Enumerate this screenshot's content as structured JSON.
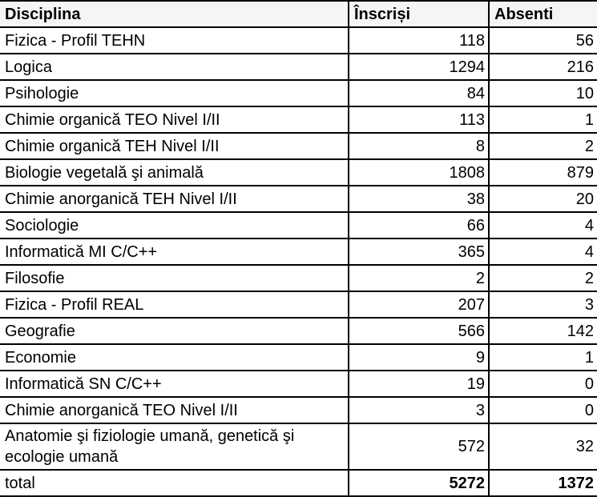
{
  "table": {
    "headers": {
      "disciplina": "Disciplina",
      "inscrisi": "Înscriși",
      "absenti": "Absenti"
    },
    "rows": [
      {
        "disciplina": "Fizica - Profil TEHN",
        "inscrisi": "118",
        "absenti": "56"
      },
      {
        "disciplina": "Logica",
        "inscrisi": "1294",
        "absenti": "216"
      },
      {
        "disciplina": "Psihologie",
        "inscrisi": "84",
        "absenti": "10"
      },
      {
        "disciplina": "Chimie organică TEO Nivel I/II",
        "inscrisi": "113",
        "absenti": "1"
      },
      {
        "disciplina": "Chimie organică TEH Nivel I/II",
        "inscrisi": "8",
        "absenti": "2"
      },
      {
        "disciplina": "Biologie vegetală şi animală",
        "inscrisi": "1808",
        "absenti": "879"
      },
      {
        "disciplina": "Chimie anorganică TEH Nivel I/II",
        "inscrisi": "38",
        "absenti": "20"
      },
      {
        "disciplina": "Sociologie",
        "inscrisi": "66",
        "absenti": "4"
      },
      {
        "disciplina": "Informatică MI C/C++",
        "inscrisi": "365",
        "absenti": "4"
      },
      {
        "disciplina": "Filosofie",
        "inscrisi": "2",
        "absenti": "2"
      },
      {
        "disciplina": "Fizica - Profil REAL",
        "inscrisi": "207",
        "absenti": "3"
      },
      {
        "disciplina": "Geografie",
        "inscrisi": "566",
        "absenti": "142"
      },
      {
        "disciplina": "Economie",
        "inscrisi": "9",
        "absenti": "1"
      },
      {
        "disciplina": "Informatică SN C/C++",
        "inscrisi": "19",
        "absenti": "0"
      },
      {
        "disciplina": "Chimie anorganică TEO Nivel I/II",
        "inscrisi": "3",
        "absenti": "0"
      },
      {
        "disciplina": "Anatomie şi fiziologie umană, genetică şi ecologie umană",
        "inscrisi": "572",
        "absenti": "32"
      }
    ],
    "total": {
      "label": "total",
      "inscrisi": "5272",
      "absenti": "1372"
    }
  },
  "colors": {
    "header_bg": "#f4f5f7",
    "row_bg": "#ffffff",
    "border": "#000000",
    "text": "#000000"
  },
  "chart_data": {
    "type": "table",
    "title": "",
    "columns": [
      "Disciplina",
      "Înscriși",
      "Absenti"
    ],
    "rows": [
      [
        "Fizica - Profil TEHN",
        118,
        56
      ],
      [
        "Logica",
        1294,
        216
      ],
      [
        "Psihologie",
        84,
        10
      ],
      [
        "Chimie organică TEO Nivel I/II",
        113,
        1
      ],
      [
        "Chimie organică TEH Nivel I/II",
        8,
        2
      ],
      [
        "Biologie vegetală şi animală",
        1808,
        879
      ],
      [
        "Chimie anorganică TEH Nivel I/II",
        38,
        20
      ],
      [
        "Sociologie",
        66,
        4
      ],
      [
        "Informatică MI C/C++",
        365,
        4
      ],
      [
        "Filosofie",
        2,
        2
      ],
      [
        "Fizica - Profil REAL",
        207,
        3
      ],
      [
        "Geografie",
        566,
        142
      ],
      [
        "Economie",
        9,
        1
      ],
      [
        "Informatică SN C/C++",
        19,
        0
      ],
      [
        "Chimie anorganică TEO Nivel I/II",
        3,
        0
      ],
      [
        "Anatomie şi fiziologie umană, genetică şi ecologie umană",
        572,
        32
      ]
    ],
    "total_row": [
      "total",
      5272,
      1372
    ]
  }
}
